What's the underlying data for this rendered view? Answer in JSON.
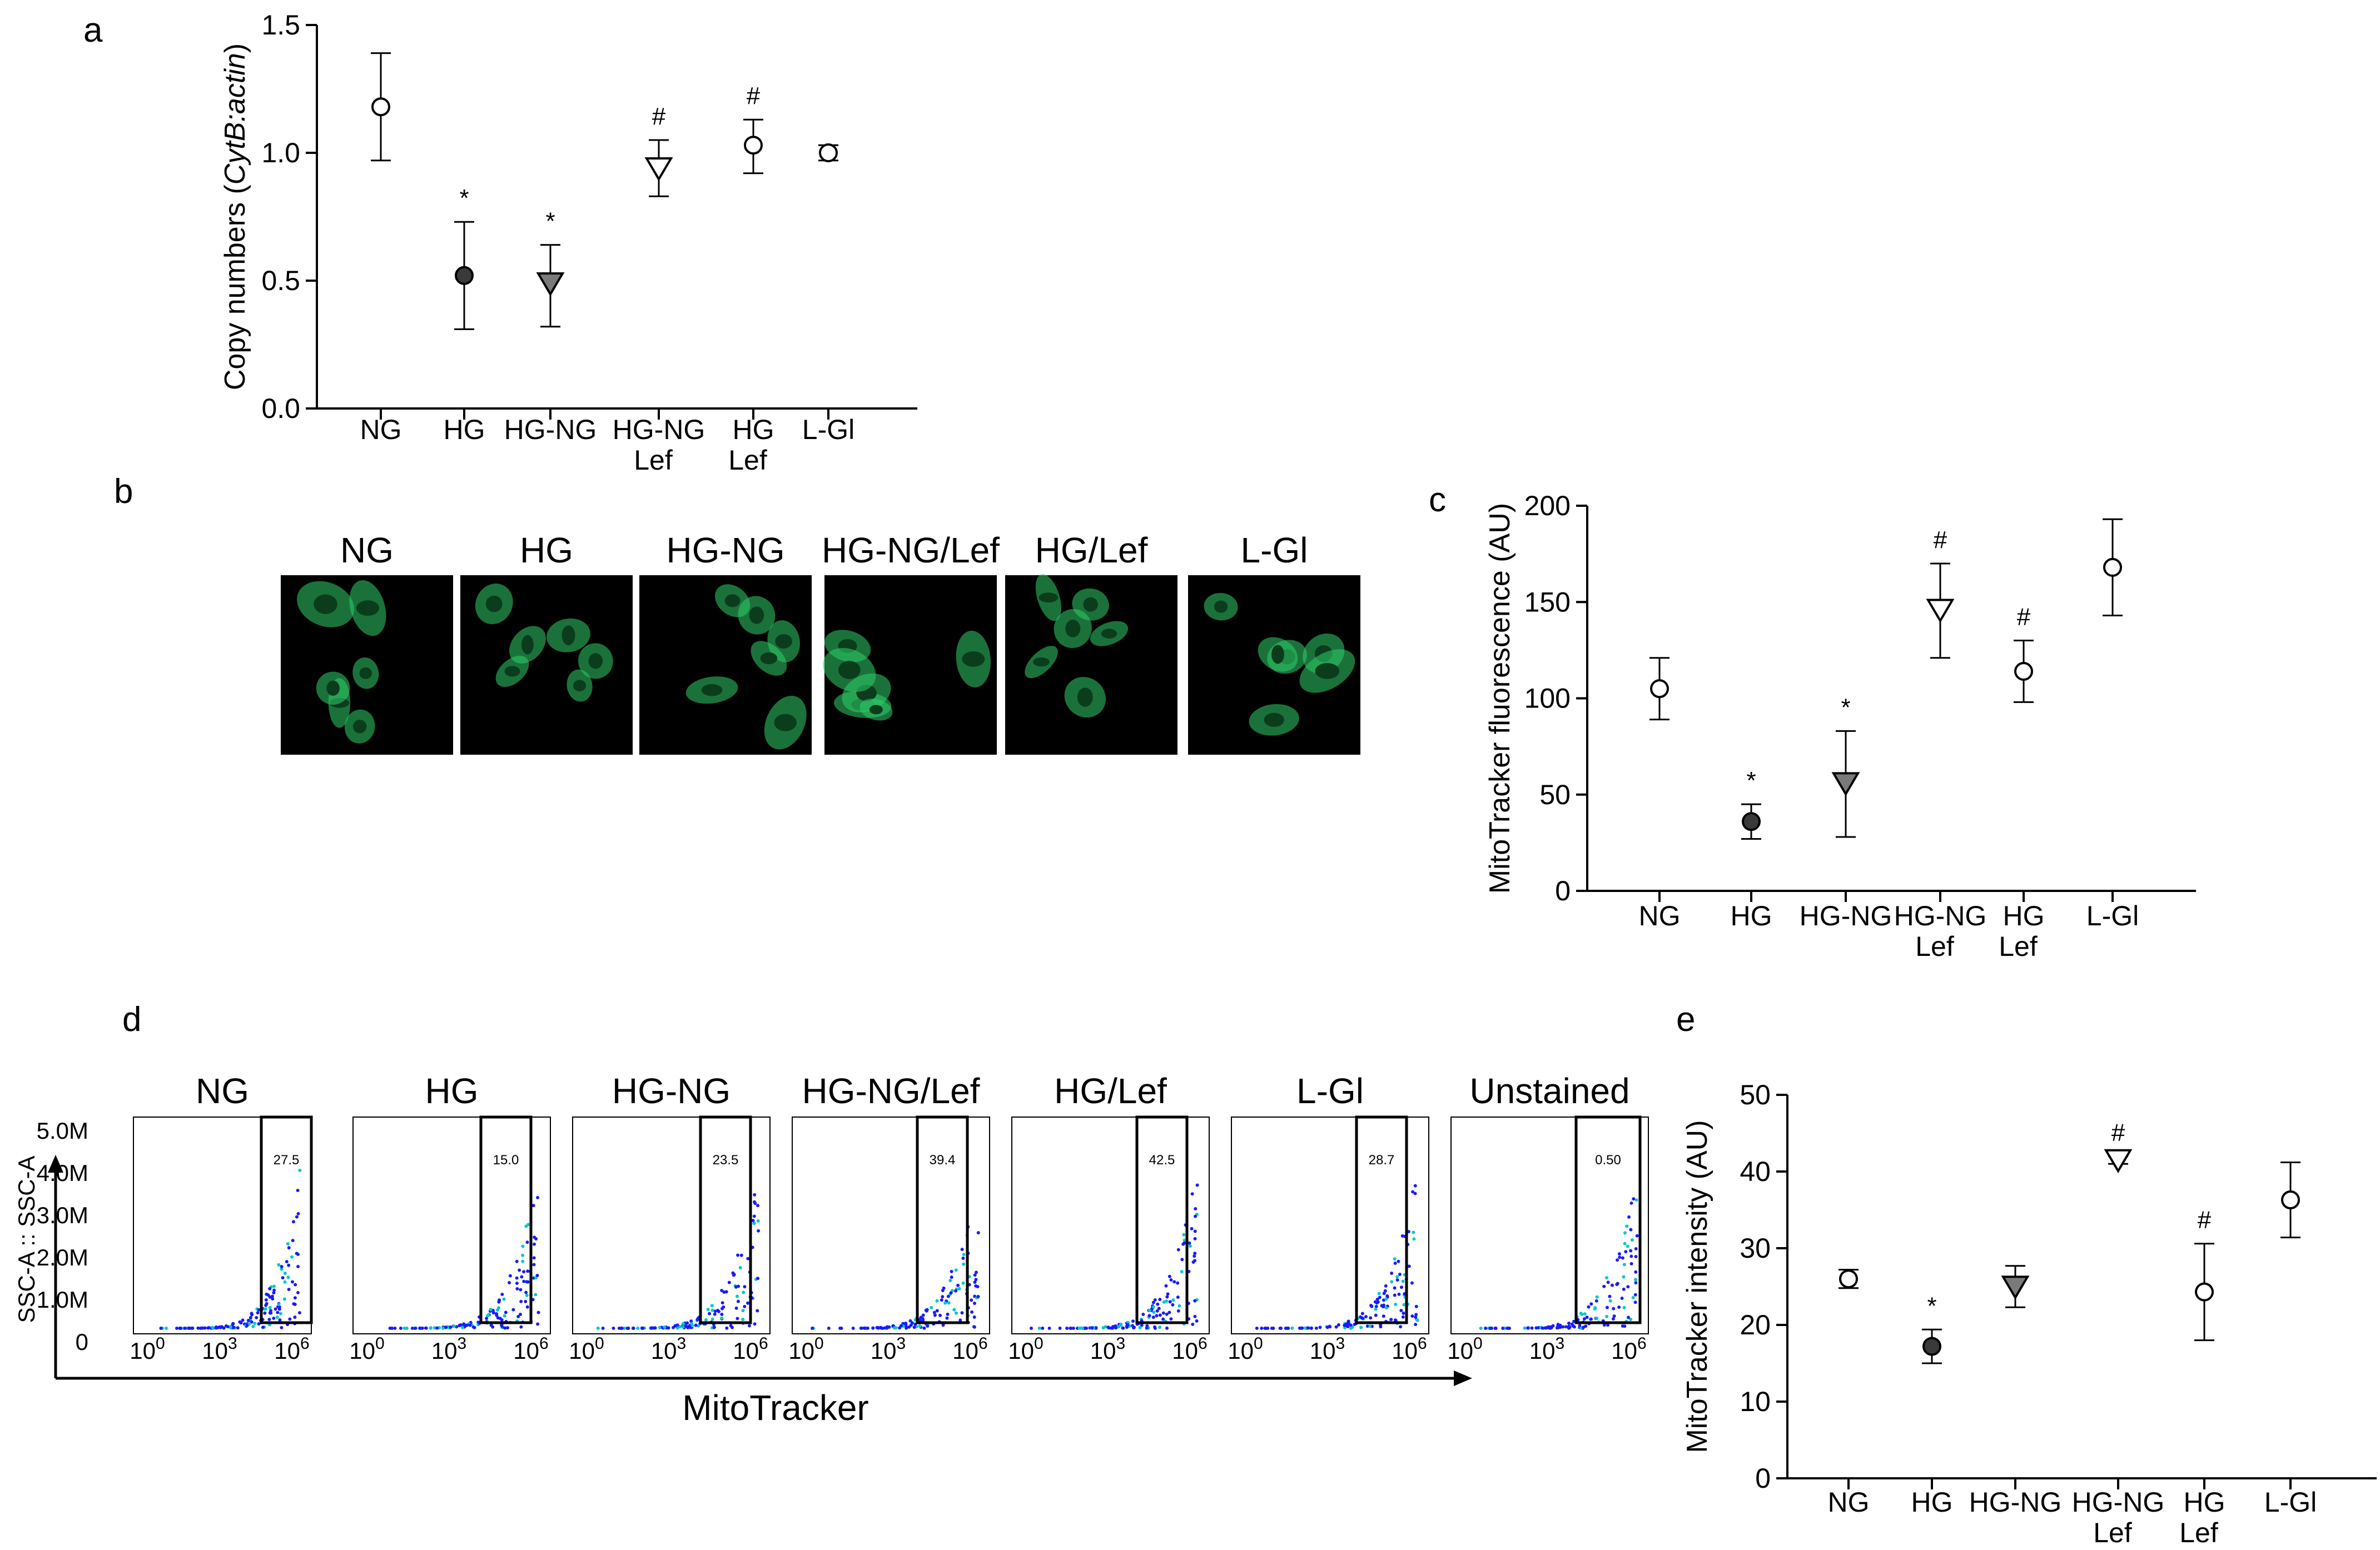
{
  "panels": {
    "a": "a",
    "b": "b",
    "c": "c",
    "d": "d",
    "e": "e"
  },
  "chart_data": [
    {
      "panel": "a",
      "type": "scatter",
      "ylabel_prefix": "Copy numbers (",
      "ylabel_italic": "CytB:actin",
      "ylabel_suffix": ")",
      "ylim": [
        0,
        1.5
      ],
      "yticks": [
        "0.0",
        "0.5",
        "1.0",
        "1.5"
      ],
      "categories": [
        {
          "line1": "NG",
          "line2": ""
        },
        {
          "line1": "HG",
          "line2": ""
        },
        {
          "line1": "HG-NG",
          "line2": ""
        },
        {
          "line1": "HG-NG",
          "line2": "Lef"
        },
        {
          "line1": "HG",
          "line2": "Lef"
        },
        {
          "line1": "L-Gl",
          "line2": ""
        }
      ],
      "points": [
        {
          "value": 1.18,
          "err_low": 0.97,
          "err_high": 1.39,
          "marker": "circle-open",
          "sig": ""
        },
        {
          "value": 0.52,
          "err_low": 0.31,
          "err_high": 0.73,
          "marker": "circle-filled",
          "sig": "*"
        },
        {
          "value": 0.49,
          "err_low": 0.32,
          "err_high": 0.64,
          "marker": "triangle-gray",
          "sig": "*"
        },
        {
          "value": 0.94,
          "err_low": 0.83,
          "err_high": 1.05,
          "marker": "triangle-open",
          "sig": "#"
        },
        {
          "value": 1.03,
          "err_low": 0.92,
          "err_high": 1.13,
          "marker": "circle-open",
          "sig": "#"
        },
        {
          "value": 1.0,
          "err_low": 0.97,
          "err_high": 1.03,
          "marker": "circle-open",
          "sig": ""
        }
      ]
    },
    {
      "panel": "c",
      "type": "scatter",
      "ylabel": "MitoTracker fluorescence (AU)",
      "ylim": [
        0,
        200
      ],
      "yticks": [
        "0",
        "50",
        "100",
        "150",
        "200"
      ],
      "categories": [
        {
          "line1": "NG",
          "line2": ""
        },
        {
          "line1": "HG",
          "line2": ""
        },
        {
          "line1": "HG-NG",
          "line2": ""
        },
        {
          "line1": "HG-NG",
          "line2": "Lef"
        },
        {
          "line1": "HG",
          "line2": "Lef"
        },
        {
          "line1": "L-Gl",
          "line2": ""
        }
      ],
      "points": [
        {
          "value": 105,
          "err_low": 89,
          "err_high": 121,
          "marker": "circle-open",
          "sig": ""
        },
        {
          "value": 36,
          "err_low": 27,
          "err_high": 45,
          "marker": "circle-filled",
          "sig": "*"
        },
        {
          "value": 56,
          "err_low": 28,
          "err_high": 83,
          "marker": "triangle-gray",
          "sig": "*"
        },
        {
          "value": 146,
          "err_low": 121,
          "err_high": 170,
          "marker": "triangle-open",
          "sig": "#"
        },
        {
          "value": 114,
          "err_low": 98,
          "err_high": 130,
          "marker": "circle-open",
          "sig": "#"
        },
        {
          "value": 168,
          "err_low": 143,
          "err_high": 193,
          "marker": "circle-open",
          "sig": ""
        }
      ]
    },
    {
      "panel": "e",
      "type": "scatter",
      "ylabel": "MitoTracker intensity (AU)",
      "ylim": [
        0,
        50
      ],
      "yticks": [
        "0",
        "10",
        "20",
        "30",
        "40",
        "50"
      ],
      "categories": [
        {
          "line1": "NG",
          "line2": ""
        },
        {
          "line1": "HG",
          "line2": ""
        },
        {
          "line1": "HG-NG",
          "line2": ""
        },
        {
          "line1": "HG-NG",
          "line2": "Lef"
        },
        {
          "line1": "HG",
          "line2": "Lef"
        },
        {
          "line1": "L-Gl",
          "line2": ""
        }
      ],
      "points": [
        {
          "value": 26,
          "err_low": 24.8,
          "err_high": 27.2,
          "marker": "circle-open",
          "sig": ""
        },
        {
          "value": 17.2,
          "err_low": 15,
          "err_high": 19.4,
          "marker": "circle-filled",
          "sig": "*"
        },
        {
          "value": 25,
          "err_low": 22.3,
          "err_high": 27.7,
          "marker": "triangle-gray",
          "sig": ""
        },
        {
          "value": 41.5,
          "err_low": 41.0,
          "err_high": 42.0,
          "marker": "triangle-open",
          "sig": "#"
        },
        {
          "value": 24.3,
          "err_low": 18,
          "err_high": 30.6,
          "marker": "circle-open",
          "sig": "#"
        },
        {
          "value": 36.3,
          "err_low": 31.4,
          "err_high": 41.2,
          "marker": "circle-open",
          "sig": ""
        }
      ]
    }
  ],
  "micrographs": {
    "labels": [
      "NG",
      "HG",
      "HG-NG",
      "HG-NG/Lef",
      "HG/Lef",
      "L-Gl"
    ],
    "stain_color": "#2fd06a",
    "background": "#000000"
  },
  "flow": {
    "labels": [
      "NG",
      "HG",
      "HG-NG",
      "HG-NG/Lef",
      "HG/Lef",
      "L-Gl",
      "Unstained"
    ],
    "gate_values": [
      "27.5",
      "15.0",
      "23.5",
      "39.4",
      "42.5",
      "28.7",
      "0.50"
    ],
    "y_axis_title": "SSC-A :: SSC-A",
    "yticks": [
      "5.0M",
      "4.0M",
      "3.0M",
      "2.0M",
      "1.0M",
      "0"
    ],
    "x_axis_title": "MitoTracker",
    "xtick_base": "10",
    "xtick_exponents": [
      "0",
      "3",
      "6"
    ],
    "dot_color_dense": "#00c8c8",
    "dot_color_sparse": "#1a1aff"
  },
  "colors": {
    "filled_marker": "#3a3a3a",
    "gray_marker": "#7a7a7a",
    "axis": "#000000"
  }
}
